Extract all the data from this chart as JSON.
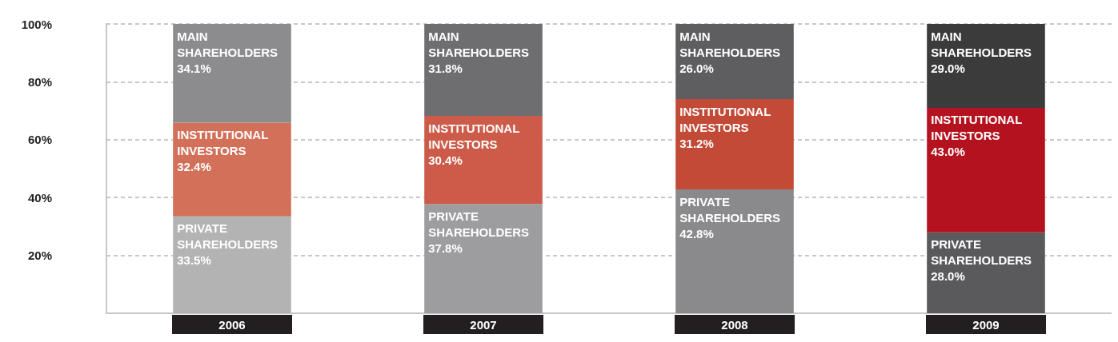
{
  "chart_data": {
    "type": "bar",
    "stacked": true,
    "grid": "y",
    "legend": false,
    "categories": [
      "2006",
      "2007",
      "2008",
      "2009"
    ],
    "series": [
      {
        "name": "PRIVATE SHAREHOLDERS",
        "colors": [
          "#b3b3b4",
          "#9d9d9f",
          "#8a8a8c",
          "#5a5a5c"
        ],
        "values": [
          33.5,
          37.8,
          42.8,
          28.0
        ],
        "value_labels": [
          "33.5%",
          "37.8%",
          "42.8%",
          "28.0%"
        ]
      },
      {
        "name": "INSTITUTIONAL INVESTORS",
        "colors": [
          "#d27059",
          "#cc5c49",
          "#c24a36",
          "#b5121f"
        ],
        "values": [
          32.4,
          30.4,
          31.2,
          43.0
        ],
        "value_labels": [
          "32.4%",
          "30.4%",
          "31.2%",
          "43.0%"
        ]
      },
      {
        "name": "MAIN SHAREHOLDERS",
        "colors": [
          "#8c8c8e",
          "#6e6e71",
          "#5e5e61",
          "#3c3b3c"
        ],
        "values": [
          34.1,
          31.8,
          26.0,
          29.0
        ],
        "value_labels": [
          "34.1%",
          "31.8%",
          "26.0%",
          "29.0%"
        ]
      }
    ],
    "ylim": [
      0,
      100
    ],
    "yticks": [
      {
        "value": 20,
        "label": "20%"
      },
      {
        "value": 40,
        "label": "40%"
      },
      {
        "value": 60,
        "label": "60%"
      },
      {
        "value": 80,
        "label": "80%"
      },
      {
        "value": 100,
        "label": "100%"
      }
    ]
  }
}
